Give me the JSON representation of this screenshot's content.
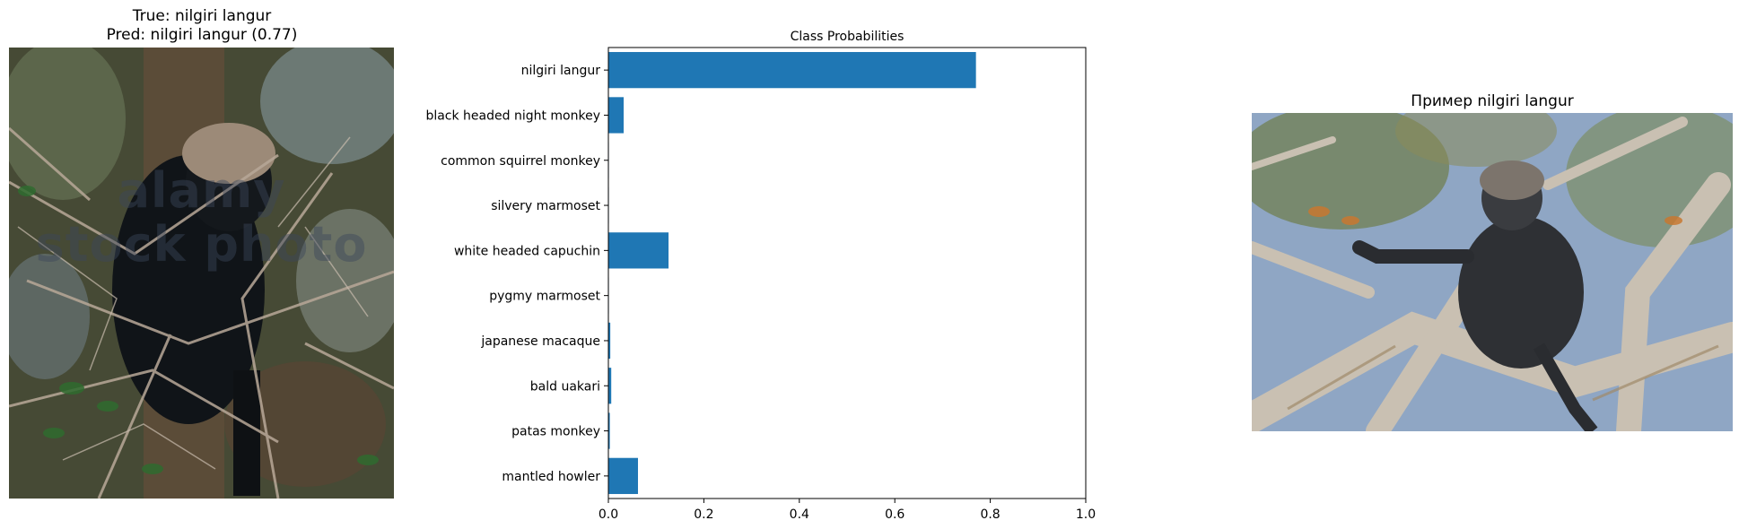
{
  "left_panel": {
    "title_line1": "True: nilgiri langur",
    "title_line2": "Pred: nilgiri langur (0.77)",
    "watermark_line1": "alamy",
    "watermark_line2": "stock photo"
  },
  "right_panel": {
    "title": "Пример nilgiri langur"
  },
  "chart_data": {
    "type": "bar",
    "orientation": "horizontal",
    "title": "Class Probabilities",
    "xlabel": "",
    "ylabel": "",
    "xlim": [
      0,
      1.0
    ],
    "xticks": [
      "0.0",
      "0.2",
      "0.4",
      "0.6",
      "0.8",
      "1.0"
    ],
    "grid": false,
    "bar_color": "#1f77b4",
    "categories": [
      "nilgiri langur",
      "black headed night monkey",
      "common squirrel monkey",
      "silvery marmoset",
      "white headed capuchin",
      "pygmy marmoset",
      "japanese macaque",
      "bald uakari",
      "patas monkey",
      "mantled howler"
    ],
    "values": [
      0.77,
      0.032,
      0.001,
      0.001,
      0.126,
      0.001,
      0.004,
      0.006,
      0.003,
      0.062
    ]
  }
}
